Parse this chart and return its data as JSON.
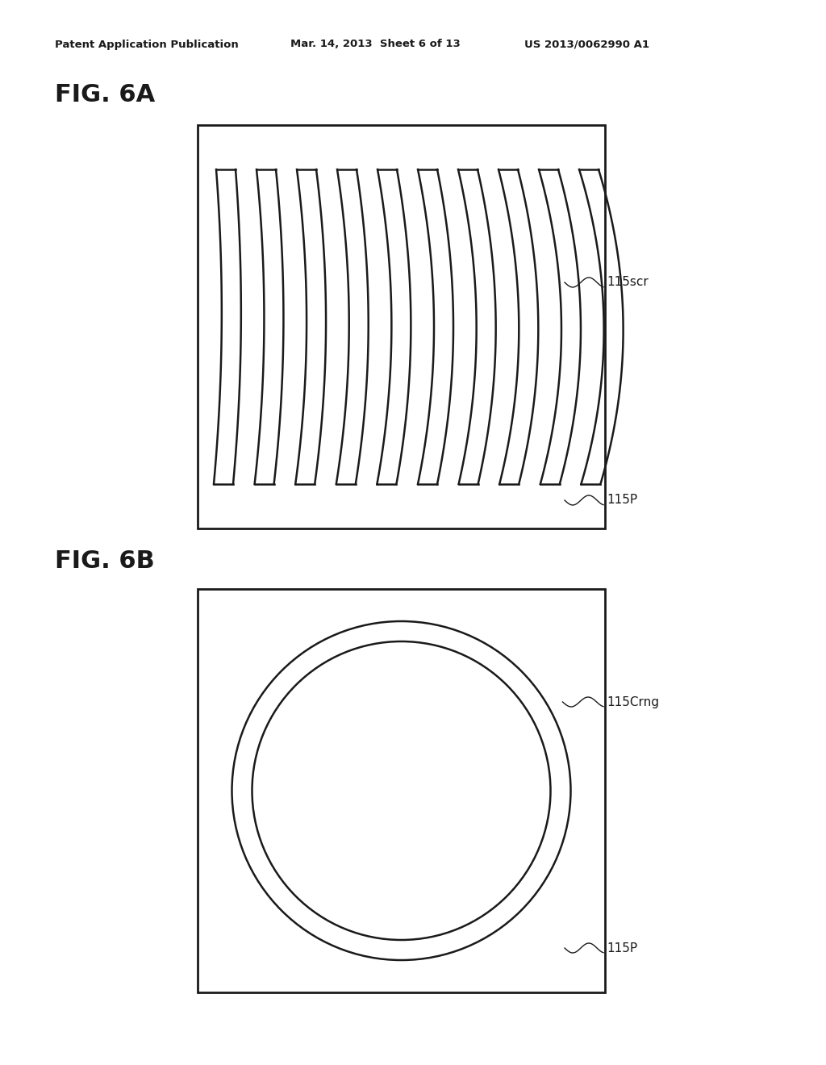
{
  "bg_color": "#ffffff",
  "header_text": "Patent Application Publication",
  "header_date": "Mar. 14, 2013  Sheet 6 of 13",
  "header_patent": "US 2013/0062990 A1",
  "fig6a_label": "FIG. 6A",
  "fig6b_label": "FIG. 6B",
  "label_115scr": "115scr",
  "label_115p_a": "115P",
  "label_115crng": "115Crng",
  "label_115p_b": "115P",
  "line_color": "#1a1a1a",
  "line_width": 1.8,
  "n_stripes": 10,
  "box6a": [
    245,
    155,
    505,
    500
  ],
  "box6b": [
    245,
    730,
    505,
    500
  ]
}
